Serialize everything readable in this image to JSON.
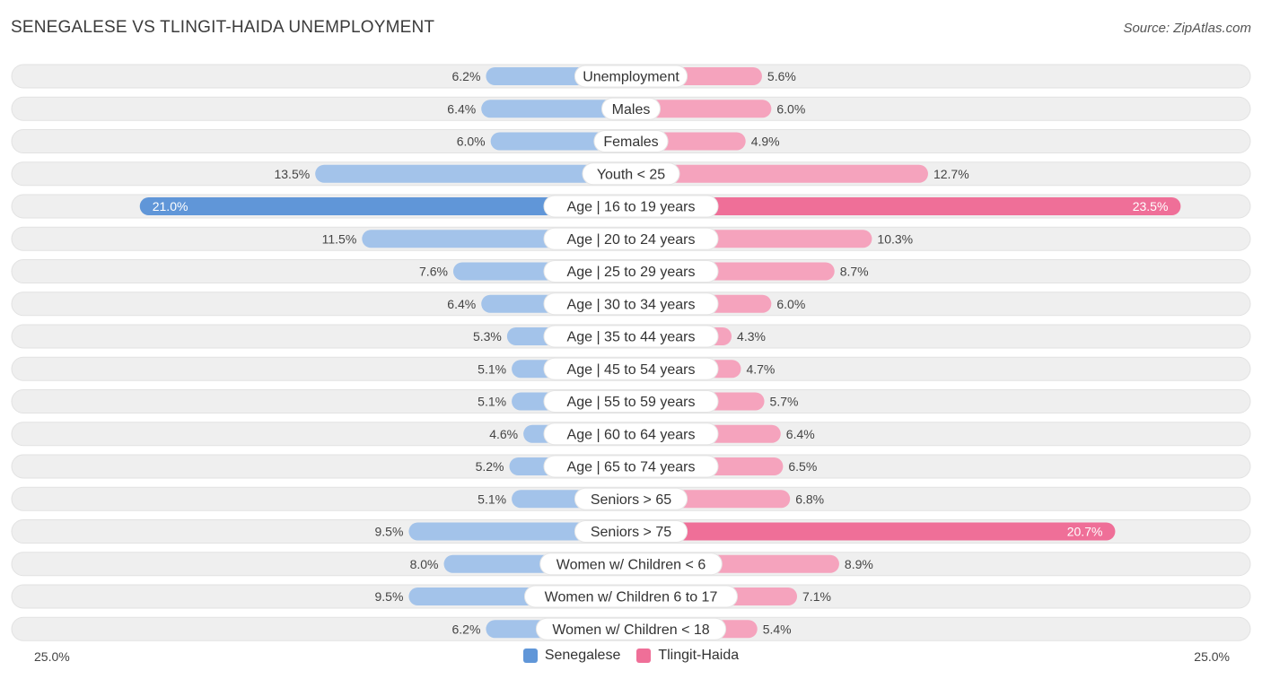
{
  "title": "SENEGALESE VS TLINGIT-HAIDA UNEMPLOYMENT",
  "source": "Source: ZipAtlas.com",
  "colors": {
    "left_light": "#a3c3ea",
    "left_strong": "#6096d8",
    "right_light": "#f5a3bd",
    "right_strong": "#ef6f98",
    "row_bg": "#efefef"
  },
  "chart_data": {
    "type": "bar",
    "orientation": "horizontal-diverging",
    "title": "SENEGALESE VS TLINGIT-HAIDA UNEMPLOYMENT",
    "xlim": [
      0,
      25.0
    ],
    "axis_labels": {
      "left": "25.0%",
      "right": "25.0%"
    },
    "categories": [
      "Unemployment",
      "Males",
      "Females",
      "Youth < 25",
      "Age | 16 to 19 years",
      "Age | 20 to 24 years",
      "Age | 25 to 29 years",
      "Age | 30 to 34 years",
      "Age | 35 to 44 years",
      "Age | 45 to 54 years",
      "Age | 55 to 59 years",
      "Age | 60 to 64 years",
      "Age | 65 to 74 years",
      "Seniors > 65",
      "Seniors > 75",
      "Women w/ Children < 6",
      "Women w/ Children 6 to 17",
      "Women w/ Children < 18"
    ],
    "series": [
      {
        "name": "Senegalese",
        "values": [
          6.2,
          6.4,
          6.0,
          13.5,
          21.0,
          11.5,
          7.6,
          6.4,
          5.3,
          5.1,
          5.1,
          4.6,
          5.2,
          5.1,
          9.5,
          8.0,
          9.5,
          6.2
        ],
        "labels": [
          "6.2%",
          "6.4%",
          "6.0%",
          "13.5%",
          "21.0%",
          "11.5%",
          "7.6%",
          "6.4%",
          "5.3%",
          "5.1%",
          "5.1%",
          "4.6%",
          "5.2%",
          "5.1%",
          "9.5%",
          "8.0%",
          "9.5%",
          "6.2%"
        ]
      },
      {
        "name": "Tlingit-Haida",
        "values": [
          5.6,
          6.0,
          4.9,
          12.7,
          23.5,
          10.3,
          8.7,
          6.0,
          4.3,
          4.7,
          5.7,
          6.4,
          6.5,
          6.8,
          20.7,
          8.9,
          7.1,
          5.4
        ],
        "labels": [
          "5.6%",
          "6.0%",
          "4.9%",
          "12.7%",
          "23.5%",
          "10.3%",
          "8.7%",
          "6.0%",
          "4.3%",
          "4.7%",
          "5.7%",
          "6.4%",
          "6.5%",
          "6.8%",
          "20.7%",
          "8.9%",
          "7.1%",
          "5.4%"
        ]
      }
    ],
    "legend": [
      "Senegalese",
      "Tlingit-Haida"
    ]
  }
}
